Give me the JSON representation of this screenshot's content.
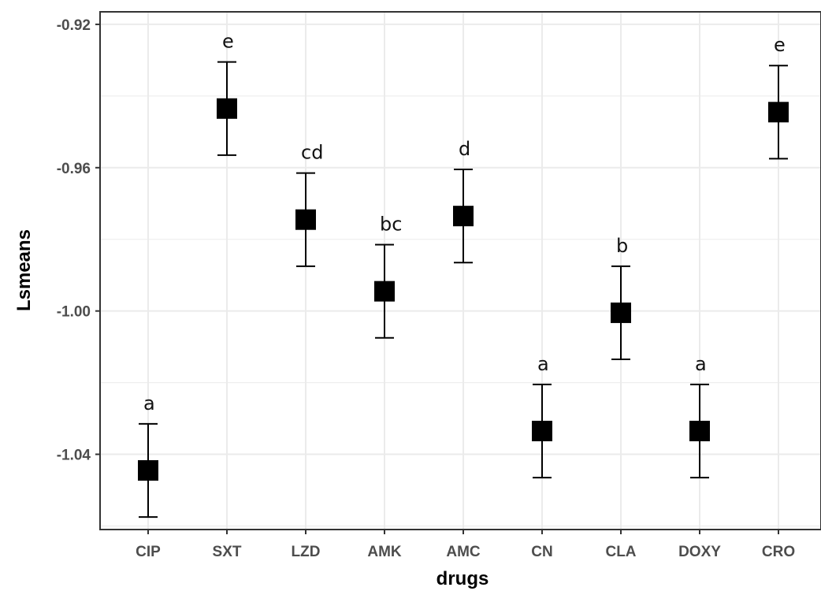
{
  "chart_data": {
    "type": "scatter",
    "xlabel": "drugs",
    "ylabel": "Lsmeans",
    "categories": [
      "CIP",
      "SXT",
      "LZD",
      "AMK",
      "AMC",
      "CN",
      "CLA",
      "DOXY",
      "CRO"
    ],
    "values": [
      -1.0445,
      -0.9435,
      -0.9745,
      -0.9945,
      -0.9735,
      -1.0335,
      -1.0005,
      -1.0335,
      -0.9445
    ],
    "error_lower": [
      -1.0575,
      -0.9565,
      -0.9875,
      -1.0075,
      -0.9865,
      -1.0465,
      -1.0135,
      -1.0465,
      -0.9575
    ],
    "error_upper": [
      -1.0315,
      -0.9305,
      -0.9615,
      -0.9815,
      -0.9605,
      -1.0205,
      -0.9875,
      -1.0205,
      -0.9315
    ],
    "group_letters": [
      "a",
      "e",
      "cd",
      "bc",
      "d",
      "a",
      "b",
      "a",
      "e"
    ],
    "y_ticks": [
      -0.92,
      -0.96,
      -1.0,
      -1.04
    ],
    "y_tick_labels": [
      "-0.92",
      "-0.96",
      "-1.00",
      "-1.04"
    ],
    "ylim": [
      -1.061,
      -0.9165
    ],
    "grid": true,
    "legend": "none",
    "marker": "square",
    "colors": {
      "marker": "#000000",
      "errorbar": "#000000",
      "grid": "#ebebeb",
      "panel_border": "#333333",
      "tick_label": "#4d4d4d"
    }
  }
}
